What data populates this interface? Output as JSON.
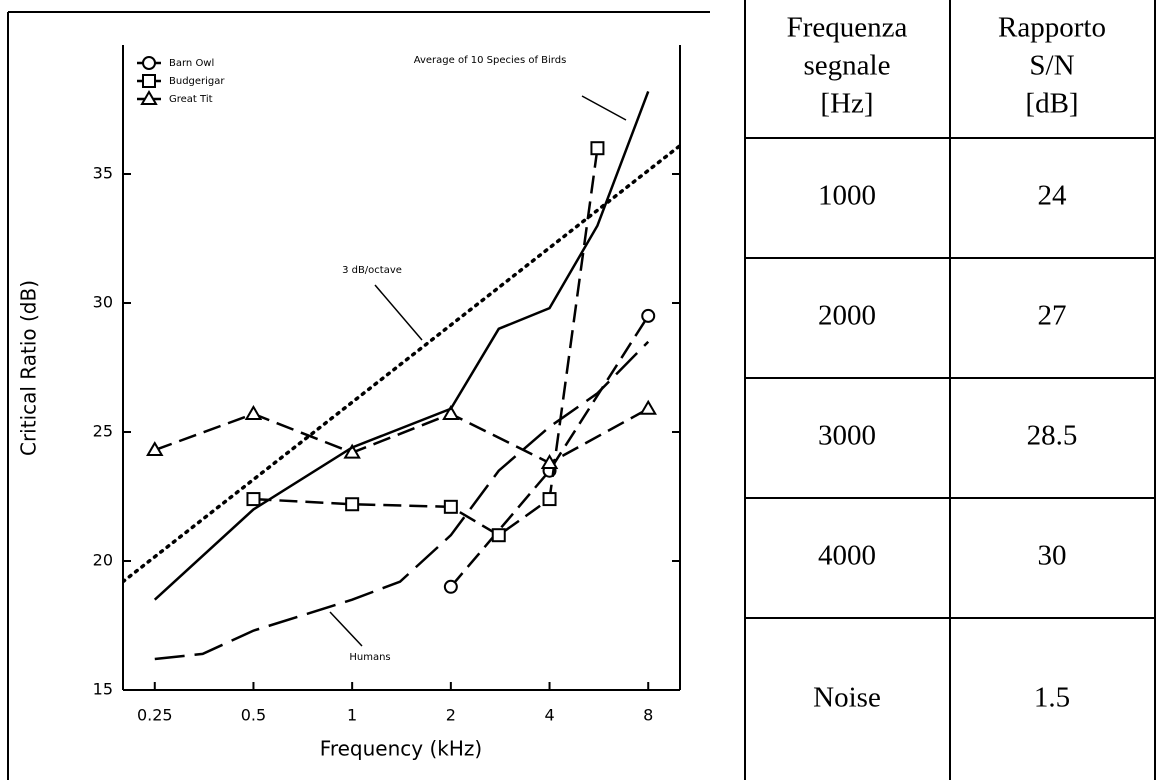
{
  "chart_data": {
    "type": "line",
    "x_scale": "log",
    "xlabel": "Frequency (kHz)",
    "ylabel": "Critical Ratio (dB)",
    "xlim": [
      0.2,
      10
    ],
    "xticks": [
      0.25,
      0.5,
      1,
      2,
      4,
      8
    ],
    "ylim": [
      15,
      40
    ],
    "yticks": [
      15,
      20,
      25,
      30,
      35
    ],
    "grid": false,
    "legend": "upper left",
    "series": [
      {
        "name": "Barn Owl",
        "color": "#000000",
        "marker": "circle",
        "dash": "dashed",
        "in_legend": true,
        "x": [
          2,
          4,
          8
        ],
        "values": [
          19,
          23.5,
          29.5
        ]
      },
      {
        "name": "Budgerigar",
        "color": "#000000",
        "marker": "square",
        "dash": "dashed",
        "in_legend": true,
        "x": [
          0.5,
          1,
          2,
          2.8,
          4,
          5.6
        ],
        "values": [
          22.4,
          22.2,
          22.1,
          21,
          22.4,
          36
        ]
      },
      {
        "name": "Great Tit",
        "color": "#000000",
        "marker": "triangle",
        "dash": "dashed",
        "in_legend": true,
        "x": [
          0.25,
          0.5,
          1,
          2,
          4,
          8
        ],
        "values": [
          24.3,
          25.7,
          24.2,
          25.7,
          23.8,
          25.9
        ]
      },
      {
        "name": "Average of 10 Species of Birds",
        "color": "#000000",
        "marker": "none",
        "dash": "solid",
        "in_legend": false,
        "x": [
          0.25,
          0.5,
          1,
          2,
          2.8,
          4,
          5.6,
          8
        ],
        "values": [
          18.5,
          22,
          24.4,
          25.9,
          29,
          29.8,
          33,
          38.2
        ]
      },
      {
        "name": "Humans",
        "color": "#000000",
        "marker": "none",
        "dash": "longdash",
        "in_legend": false,
        "x": [
          0.25,
          0.35,
          0.5,
          1,
          1.4,
          2,
          2.8,
          4,
          5.6,
          8
        ],
        "values": [
          16.2,
          16.4,
          17.3,
          18.5,
          19.2,
          21,
          23.5,
          25.2,
          26.5,
          28.5
        ]
      },
      {
        "name": "3 dB/octave",
        "color": "#000000",
        "marker": "none",
        "dash": "dotted",
        "in_legend": false,
        "x": [
          0.2,
          10
        ],
        "values": [
          19.2,
          36.1
        ]
      }
    ]
  },
  "table": {
    "header": [
      [
        "Frequenza",
        "segnale",
        "[Hz]"
      ],
      [
        "Rapporto",
        "S/N",
        "[dB]"
      ]
    ],
    "rows": [
      [
        "1000",
        "24"
      ],
      [
        "2000",
        "27"
      ],
      [
        "3000",
        "28.5"
      ],
      [
        "4000",
        "30"
      ],
      [
        "Noise",
        "1.5"
      ]
    ]
  }
}
